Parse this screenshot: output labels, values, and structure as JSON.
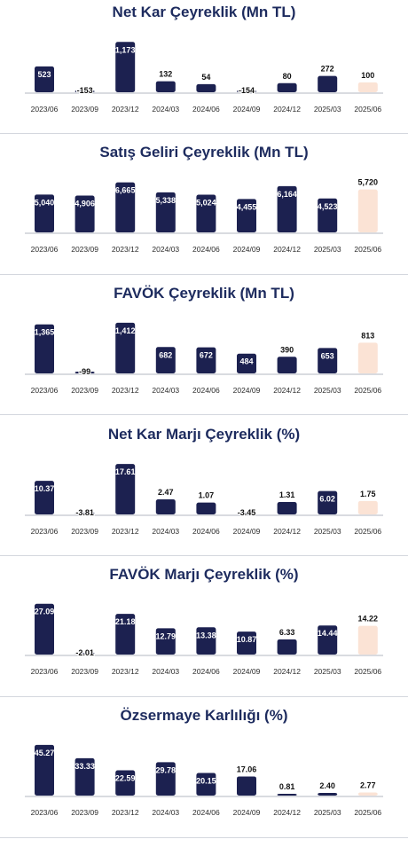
{
  "colors": {
    "bar": "#1c2150",
    "highlight": "#fbe3d5",
    "title": "#1d2b5e",
    "baseline": "#b3b7c0",
    "separator": "#d4d7de"
  },
  "chart_data": [
    {
      "type": "bar",
      "title": "Net Kar Çeyreklik (Mn TL)",
      "categories": [
        "2023/06",
        "2023/09",
        "2023/12",
        "2024/03",
        "2024/06",
        "2024/09",
        "2024/12",
        "2025/03",
        "2025/06"
      ],
      "values": [
        523,
        -153,
        1173,
        132,
        54,
        -154,
        80,
        272,
        100
      ],
      "value_labels": [
        "523",
        "-153",
        "1,173",
        "132",
        "54",
        "-154",
        "80",
        "272",
        "100"
      ],
      "ylim": [
        -160,
        1250
      ],
      "highlight_last": true
    },
    {
      "type": "bar",
      "title": "Satış Geliri Çeyreklik (Mn TL)",
      "categories": [
        "2023/06",
        "2023/09",
        "2023/12",
        "2024/03",
        "2024/06",
        "2024/09",
        "2024/12",
        "2025/03",
        "2025/06"
      ],
      "values": [
        5040,
        4906,
        6665,
        5338,
        5024,
        4455,
        6164,
        4523,
        5720
      ],
      "value_labels": [
        "5,040",
        "4,906",
        "6,665",
        "5,338",
        "5,024",
        "4,455",
        "6,164",
        "4,523",
        "5,720"
      ],
      "ylim": [
        0,
        7100
      ],
      "highlight_last": true
    },
    {
      "type": "bar",
      "title": "FAVÖK Çeyreklik (Mn TL)",
      "categories": [
        "2023/06",
        "2023/09",
        "2023/12",
        "2024/03",
        "2024/06",
        "2024/09",
        "2024/12",
        "2025/03",
        "2025/06"
      ],
      "values": [
        1365,
        -99,
        1412,
        682,
        672,
        484,
        390,
        653,
        813
      ],
      "value_labels": [
        "1,365",
        "-99",
        "1,412",
        "682",
        "672",
        "484",
        "390",
        "653",
        "813"
      ],
      "ylim": [
        -110,
        1490
      ],
      "highlight_last": true
    },
    {
      "type": "bar",
      "title": "Net Kar Marjı Çeyreklik (%)",
      "categories": [
        "2023/06",
        "2023/09",
        "2023/12",
        "2024/03",
        "2024/06",
        "2024/09",
        "2024/12",
        "2025/03",
        "2025/06"
      ],
      "values": [
        10.37,
        -3.81,
        17.61,
        2.47,
        1.07,
        -3.45,
        1.31,
        6.02,
        1.75
      ],
      "value_labels": [
        "10.37",
        "-3.81",
        "17.61",
        "2.47",
        "1.07",
        "-3.45",
        "1.31",
        "6.02",
        "1.75"
      ],
      "ylim": [
        -4,
        18.8
      ],
      "highlight_last": true
    },
    {
      "type": "bar",
      "title": "FAVÖK Marjı Çeyreklik (%)",
      "categories": [
        "2023/06",
        "2023/09",
        "2023/12",
        "2024/03",
        "2024/06",
        "2024/09",
        "2024/12",
        "2025/03",
        "2025/06"
      ],
      "values": [
        27.09,
        -2.01,
        21.18,
        12.79,
        13.38,
        10.87,
        6.33,
        14.44,
        14.22
      ],
      "value_labels": [
        "27.09",
        "-2.01",
        "21.18",
        "12.79",
        "13.38",
        "10.87",
        "6.33",
        "14.44",
        "14.22"
      ],
      "ylim": [
        -2.5,
        28.5
      ],
      "highlight_last": true
    },
    {
      "type": "bar",
      "title": "Özsermaye Karlılığı (%)",
      "categories": [
        "2023/06",
        "2023/09",
        "2023/12",
        "2024/03",
        "2024/06",
        "2024/09",
        "2024/12",
        "2025/03",
        "2025/06"
      ],
      "values": [
        45.27,
        33.33,
        22.59,
        29.78,
        20.15,
        17.06,
        0.81,
        2.4,
        2.77
      ],
      "value_labels": [
        "45.27",
        "33.33",
        "22.59",
        "29.78",
        "20.15",
        "17.06",
        "0.81",
        "2.40",
        "2.77"
      ],
      "ylim": [
        0,
        47.5
      ],
      "highlight_last": true
    }
  ]
}
